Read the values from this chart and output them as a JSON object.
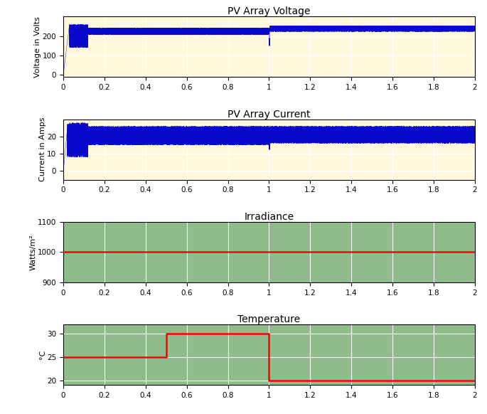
{
  "title1": "PV Array Voltage",
  "title2": "PV Array Current",
  "title3": "Irradiance",
  "title4": "Temperature",
  "ylabel1": "Voltage in Volts",
  "ylabel2": "Current in Amps",
  "ylabel3": "Watts/m²",
  "ylabel4": "°C",
  "xlim": [
    0,
    2
  ],
  "ylim1": [
    -10,
    300
  ],
  "ylim2": [
    -5,
    30
  ],
  "ylim3": [
    900,
    1100
  ],
  "ylim4": [
    19,
    32
  ],
  "xticks": [
    0,
    0.2,
    0.4,
    0.6,
    0.8,
    1.0,
    1.2,
    1.4,
    1.6,
    1.8,
    2.0
  ],
  "yticks1": [
    0,
    100,
    200
  ],
  "yticks2": [
    0,
    10,
    20
  ],
  "yticks3": [
    900,
    1000,
    1100
  ],
  "yticks4": [
    20,
    25,
    30
  ],
  "irradiance_value": 1000,
  "temp_t": [
    0,
    0.5,
    0.5,
    1.0,
    1.0,
    2.0
  ],
  "temp_v": [
    25,
    25,
    30,
    30,
    20,
    20
  ],
  "line_color_blue": "#0a0aCC",
  "line_color_red": "#FF0000",
  "bg_color_top": "#FFF8DC",
  "bg_color_bottom": "#8FBC8B",
  "grid_color": "#FFFFFF",
  "title_fontsize": 10,
  "label_fontsize": 8
}
